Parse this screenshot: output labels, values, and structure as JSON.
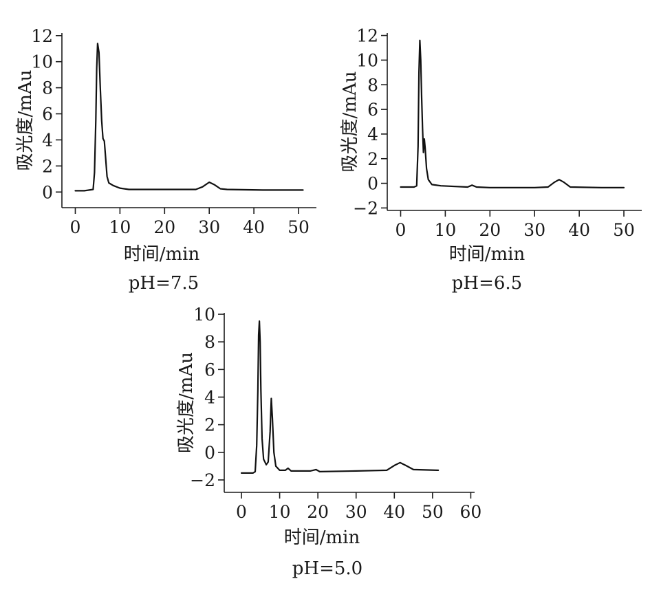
{
  "chart_data": [
    {
      "type": "line",
      "caption": "pH=7.5",
      "xlabel": "时间/min",
      "ylabel": "吸光度/mAu",
      "xlim": [
        -3,
        54
      ],
      "ylim": [
        -1.2,
        12.2
      ],
      "xticks": [
        0,
        10,
        20,
        30,
        40,
        50
      ],
      "yticks": [
        0,
        2,
        4,
        6,
        8,
        10,
        12
      ],
      "series": [
        {
          "values": [
            [
              0,
              0.1
            ],
            [
              2,
              0.1
            ],
            [
              4,
              0.2
            ],
            [
              4.3,
              1.5
            ],
            [
              4.6,
              5.5
            ],
            [
              4.8,
              9.5
            ],
            [
              5.0,
              11.4
            ],
            [
              5.3,
              10.7
            ],
            [
              5.6,
              8.0
            ],
            [
              5.9,
              5.5
            ],
            [
              6.2,
              4.1
            ],
            [
              6.5,
              3.9
            ],
            [
              6.8,
              2.6
            ],
            [
              7.1,
              1.2
            ],
            [
              7.5,
              0.7
            ],
            [
              8.5,
              0.5
            ],
            [
              10,
              0.3
            ],
            [
              12,
              0.2
            ],
            [
              20,
              0.2
            ],
            [
              27,
              0.2
            ],
            [
              28.5,
              0.4
            ],
            [
              30,
              0.75
            ],
            [
              31.2,
              0.55
            ],
            [
              32.5,
              0.25
            ],
            [
              34,
              0.2
            ],
            [
              42,
              0.15
            ],
            [
              50,
              0.15
            ],
            [
              51,
              0.15
            ]
          ]
        }
      ]
    },
    {
      "type": "line",
      "caption": "pH=6.5",
      "xlabel": "时间/min",
      "ylabel": "吸光度/mAu",
      "xlim": [
        -3,
        54
      ],
      "ylim": [
        -2.2,
        12.2
      ],
      "xticks": [
        0,
        10,
        20,
        30,
        40,
        50
      ],
      "yticks": [
        -2,
        0,
        2,
        4,
        6,
        8,
        10,
        12
      ],
      "series": [
        {
          "values": [
            [
              0,
              -0.3
            ],
            [
              3,
              -0.3
            ],
            [
              3.6,
              -0.2
            ],
            [
              3.9,
              3.0
            ],
            [
              4.1,
              9.0
            ],
            [
              4.3,
              11.6
            ],
            [
              4.5,
              10.0
            ],
            [
              4.7,
              7.0
            ],
            [
              4.9,
              4.5
            ],
            [
              5.1,
              2.5
            ],
            [
              5.3,
              3.6
            ],
            [
              5.5,
              2.8
            ],
            [
              5.8,
              1.2
            ],
            [
              6.2,
              0.3
            ],
            [
              7,
              -0.1
            ],
            [
              9,
              -0.2
            ],
            [
              15,
              -0.3
            ],
            [
              16,
              -0.15
            ],
            [
              17,
              -0.3
            ],
            [
              20,
              -0.35
            ],
            [
              30,
              -0.35
            ],
            [
              33,
              -0.3
            ],
            [
              34.5,
              0.1
            ],
            [
              35.5,
              0.3
            ],
            [
              36.5,
              0.1
            ],
            [
              38,
              -0.3
            ],
            [
              45,
              -0.35
            ],
            [
              50,
              -0.35
            ]
          ]
        }
      ]
    },
    {
      "type": "line",
      "caption": "pH=5.0",
      "xlabel": "时间/min",
      "ylabel": "吸光度/mAu",
      "xlim": [
        -4.5,
        61
      ],
      "ylim": [
        -2.9,
        10.1
      ],
      "xticks": [
        0,
        10,
        20,
        30,
        40,
        50,
        60
      ],
      "yticks": [
        -2,
        0,
        2,
        4,
        6,
        8,
        10
      ],
      "series": [
        {
          "values": [
            [
              0,
              -1.5
            ],
            [
              3,
              -1.5
            ],
            [
              3.6,
              -1.4
            ],
            [
              4.0,
              0.5
            ],
            [
              4.3,
              4.5
            ],
            [
              4.5,
              8.5
            ],
            [
              4.7,
              9.5
            ],
            [
              4.9,
              8.0
            ],
            [
              5.1,
              4.5
            ],
            [
              5.4,
              1.0
            ],
            [
              5.8,
              -0.5
            ],
            [
              6.5,
              -0.9
            ],
            [
              7.0,
              -0.7
            ],
            [
              7.5,
              1.5
            ],
            [
              7.8,
              3.9
            ],
            [
              8.1,
              2.5
            ],
            [
              8.5,
              0.0
            ],
            [
              9,
              -1.0
            ],
            [
              10,
              -1.3
            ],
            [
              11.5,
              -1.3
            ],
            [
              12.2,
              -1.15
            ],
            [
              13,
              -1.35
            ],
            [
              18,
              -1.35
            ],
            [
              19.5,
              -1.25
            ],
            [
              20.5,
              -1.4
            ],
            [
              30,
              -1.35
            ],
            [
              38,
              -1.3
            ],
            [
              40,
              -0.95
            ],
            [
              41.5,
              -0.75
            ],
            [
              43,
              -0.95
            ],
            [
              45,
              -1.25
            ],
            [
              51.5,
              -1.3
            ]
          ]
        }
      ]
    }
  ]
}
